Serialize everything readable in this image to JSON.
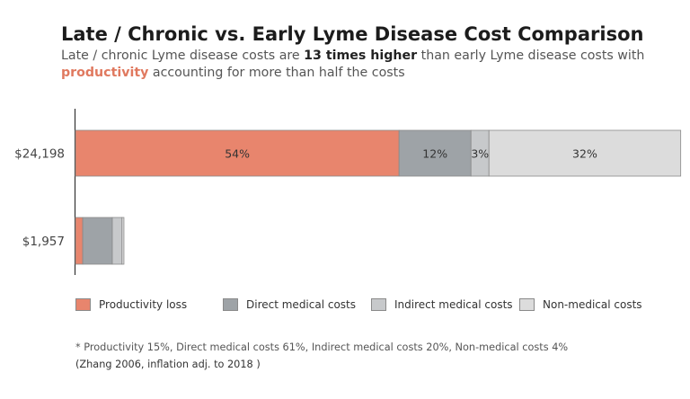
{
  "title": "Late / Chronic vs. Early Lyme Disease Cost Comparison",
  "subtitle": {
    "part1": "Late / chronic Lyme disease costs are ",
    "bold": "13 times higher",
    "part2": " than early Lyme disease costs with ",
    "highlight": "productivity",
    "part3": " accounting for more than half the costs"
  },
  "colors": {
    "productivity": "#e8856d",
    "direct_medical": "#9ea3a7",
    "indirect_medical": "#c7c9cb",
    "non_medical": "#dcdcdc",
    "highlight": "#e0795f"
  },
  "chart_data": {
    "type": "bar",
    "orientation": "horizontal",
    "stacked": true,
    "categories": [
      "$24,198",
      "$1,957"
    ],
    "totals": [
      24198,
      1957
    ],
    "series": [
      {
        "name": "Productivity loss",
        "values": [
          13067,
          294
        ],
        "labels": [
          "54%",
          ""
        ]
      },
      {
        "name": "Direct medical costs",
        "values": [
          2904,
          1194
        ],
        "labels": [
          "12%",
          ""
        ]
      },
      {
        "name": "Indirect medical costs",
        "values": [
          726,
          391
        ],
        "labels": [
          "3%",
          ""
        ]
      },
      {
        "name": "Non-medical costs",
        "values": [
          7743,
          78
        ],
        "labels": [
          "32%",
          ""
        ]
      }
    ],
    "xlim": [
      0,
      24198
    ],
    "grid": false,
    "legend": "bottom"
  },
  "footnote": {
    "line1": "* Productivity 15%, Direct medical costs 61%, Indirect medical costs 20%, Non-medical costs 4%",
    "line2": "(Zhang 2006, inflation adj. to 2018 )"
  }
}
